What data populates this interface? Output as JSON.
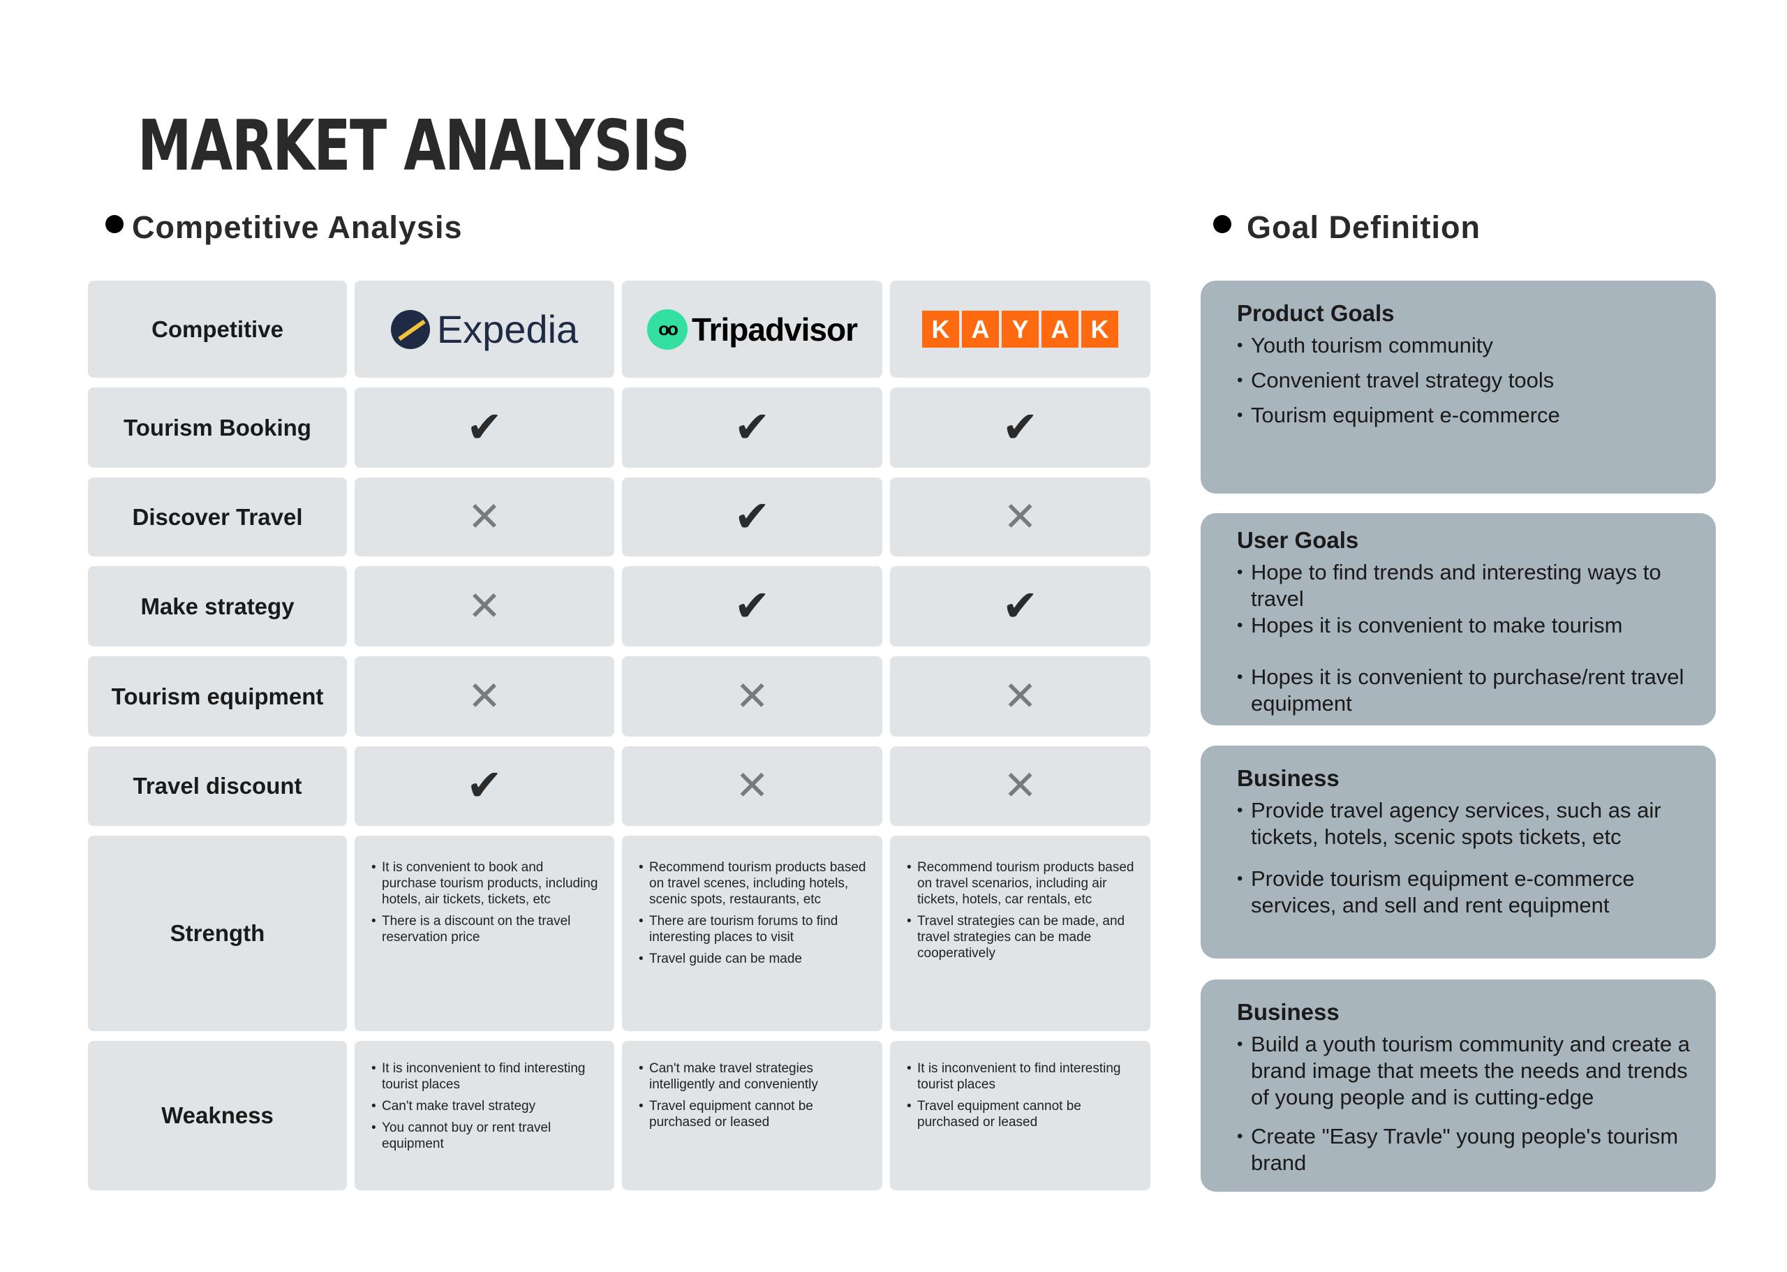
{
  "title": "MARKET ANALYSIS",
  "competitive": {
    "heading": "Competitive Analysis",
    "corner_label": "Competitive",
    "competitors": [
      {
        "name": "Expedia",
        "logo": "expedia-logo"
      },
      {
        "name": "Tripadvisor",
        "logo": "tripadvisor-logo",
        "icon_text": "oo"
      },
      {
        "name": "KAYAK",
        "logo": "kayak-logo",
        "letters": [
          "K",
          "A",
          "Y",
          "A",
          "K"
        ],
        "color": "#ff690f"
      }
    ],
    "features": [
      {
        "label": "Tourism Booking",
        "values": [
          true,
          true,
          true
        ]
      },
      {
        "label": "Discover Travel",
        "values": [
          false,
          true,
          false
        ]
      },
      {
        "label": "Make strategy",
        "values": [
          false,
          true,
          true
        ]
      },
      {
        "label": "Tourism equipment",
        "values": [
          false,
          false,
          false
        ]
      },
      {
        "label": "Travel discount",
        "values": [
          true,
          false,
          false
        ]
      }
    ],
    "check_symbol": "✔",
    "cross_symbol": "✕",
    "strength": {
      "label": "Strength",
      "items": [
        [
          "It is convenient to book and purchase tourism products, including hotels, air tickets, tickets, etc",
          "There is a discount on the travel reservation price"
        ],
        [
          "Recommend tourism products based on travel scenes, including hotels, scenic spots, restaurants, etc",
          "There are tourism forums to find interesting places to visit",
          "Travel guide can be made"
        ],
        [
          "Recommend tourism products based on travel scenarios, including air tickets, hotels, car rentals, etc",
          "Travel strategies can be made, and travel strategies can be made cooperatively"
        ]
      ]
    },
    "weakness": {
      "label": "Weakness",
      "items": [
        [
          "It is inconvenient to find interesting tourist places",
          "Can't make travel strategy",
          "You cannot buy or rent travel equipment"
        ],
        [
          "Can't make travel strategies intelligently and conveniently",
          "Travel equipment cannot be purchased or leased"
        ],
        [
          "It is inconvenient to find interesting tourist places",
          "Travel equipment cannot be purchased or leased"
        ]
      ]
    }
  },
  "goals": {
    "heading": "Goal Definition",
    "boxes": [
      {
        "title": "Product Goals",
        "items": [
          "Youth tourism community",
          "Convenient travel strategy tools",
          "Tourism equipment e-commerce"
        ]
      },
      {
        "title": "User Goals",
        "items": [
          "Hope to find trends and interesting ways to travel",
          "Hopes it is convenient to make tourism",
          "Hopes it is convenient to purchase/rent travel equipment"
        ]
      },
      {
        "title": "Business",
        "items": [
          "Provide travel agency services, such as air tickets, hotels, scenic spots tickets, etc",
          "Provide tourism equipment e-commerce services, and sell and rent equipment"
        ]
      },
      {
        "title": "Business",
        "items": [
          "Build a youth tourism community and create a brand image that meets the needs and trends of young people and is cutting-edge",
          "Create \"Easy Travle\" young people's tourism brand"
        ]
      }
    ]
  },
  "colors": {
    "cell_bg": "#e0e4e7",
    "goal_box_bg": "#a8b5bc",
    "check": "#2b2b2b",
    "cross": "#7a7a7a"
  }
}
